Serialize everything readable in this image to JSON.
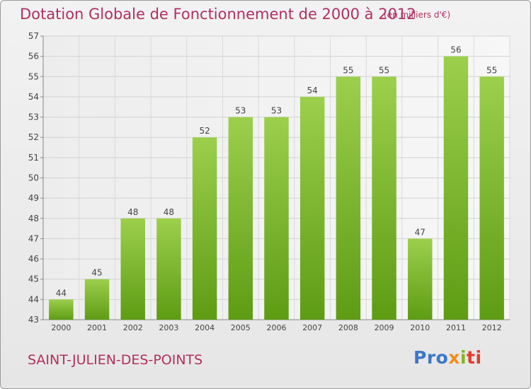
{
  "title": "Dotation Globale de Fonctionnement de 2000 à 2012",
  "unit": "(en milliers d'€)",
  "commune": "SAINT-JULIEN-DES-POINTS",
  "logo": {
    "p1": "Pro",
    "p2": "x",
    "p3": "i",
    "p4": "ti"
  },
  "colors": {
    "bar_top": "#9ccf4c",
    "bar_bottom": "#5e9c14",
    "text": "#b03060"
  },
  "chart_data": {
    "type": "bar",
    "title": "Dotation Globale de Fonctionnement de 2000 à 2012",
    "subtitle": "(en milliers d'€)",
    "xlabel": "",
    "ylabel": "",
    "categories": [
      "2000",
      "2001",
      "2002",
      "2003",
      "2004",
      "2005",
      "2006",
      "2007",
      "2008",
      "2009",
      "2010",
      "2011",
      "2012"
    ],
    "values": [
      44,
      45,
      48,
      48,
      52,
      53,
      53,
      54,
      55,
      55,
      47,
      56,
      55
    ],
    "ylim": [
      43,
      57
    ],
    "yticks": [
      43,
      44,
      45,
      46,
      47,
      48,
      49,
      50,
      51,
      52,
      53,
      54,
      55,
      56,
      57
    ],
    "grid": true,
    "legend": "none"
  }
}
